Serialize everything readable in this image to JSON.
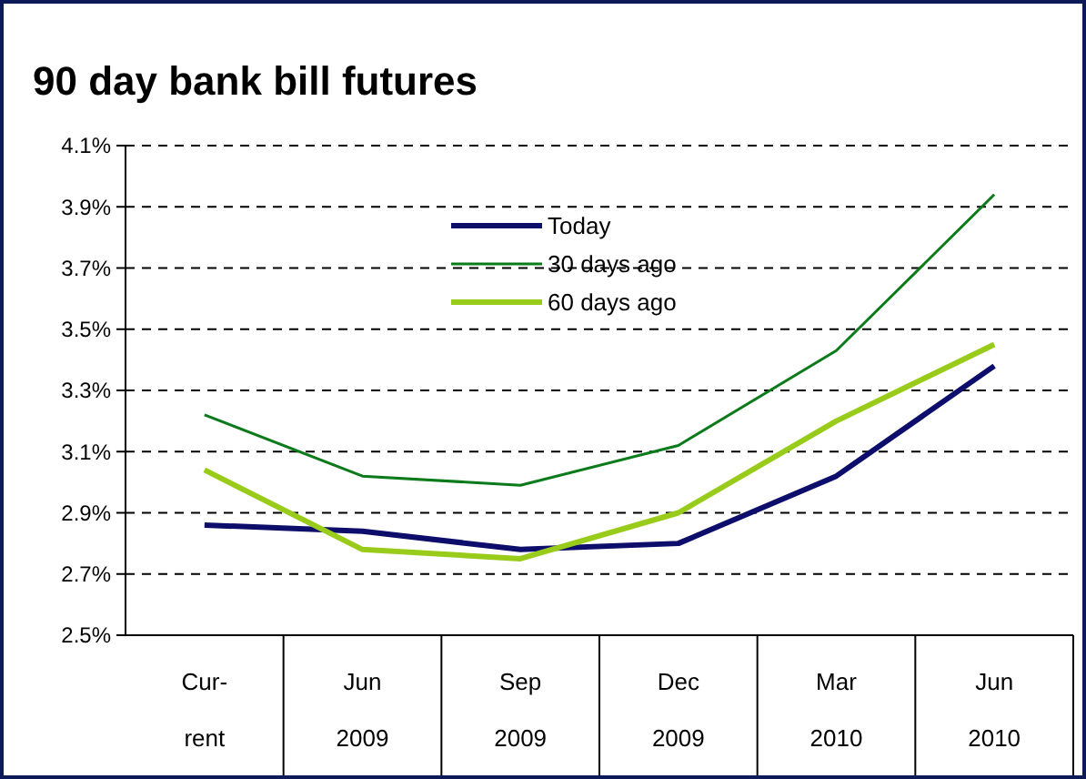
{
  "chart_data": {
    "type": "line",
    "title": "90 day bank bill futures",
    "categories": [
      "Cur-\nrent",
      "Jun\n2009",
      "Sep\n2009",
      "Dec\n2009",
      "Mar\n2010",
      "Jun\n2010"
    ],
    "series": [
      {
        "name": "Today",
        "color": "#0d0d6b",
        "values": [
          2.86,
          2.84,
          2.78,
          2.8,
          3.02,
          3.38
        ]
      },
      {
        "name": "30 days ago",
        "color": "#0a7a1a",
        "values": [
          3.22,
          3.02,
          2.99,
          3.12,
          3.43,
          3.94
        ]
      },
      {
        "name": "60 days ago",
        "color": "#99cc1a",
        "values": [
          3.04,
          2.78,
          2.75,
          2.9,
          3.2,
          3.45
        ]
      }
    ],
    "ylim": [
      2.5,
      4.1
    ],
    "yticks": [
      {
        "value": 2.5,
        "label": "2.5%"
      },
      {
        "value": 2.7,
        "label": "2.7%"
      },
      {
        "value": 2.9,
        "label": "2.9%"
      },
      {
        "value": 3.1,
        "label": "3.1%"
      },
      {
        "value": 3.3,
        "label": "3.3%"
      },
      {
        "value": 3.5,
        "label": "3.5%"
      },
      {
        "value": 3.7,
        "label": "3.7%"
      },
      {
        "value": 3.9,
        "label": "3.9%"
      },
      {
        "value": 4.1,
        "label": "4.1%"
      }
    ],
    "grid": "y",
    "legend": "top",
    "line_style": "solid"
  }
}
